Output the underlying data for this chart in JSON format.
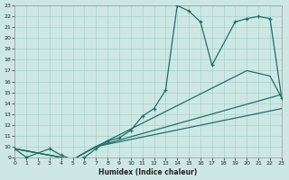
{
  "xlabel": "Humidex (Indice chaleur)",
  "background_color": "#cde8e4",
  "grid_color": "#a8d0ca",
  "line_color": "#1e7068",
  "xmin": 0,
  "xmax": 23,
  "ymin": 9,
  "ymax": 23,
  "line1_x": [
    0,
    1,
    3,
    4,
    5,
    6,
    7,
    8,
    9,
    10,
    11,
    12,
    13,
    14,
    15,
    16,
    17,
    19,
    20,
    21,
    22,
    23
  ],
  "line1_y": [
    9.8,
    9.0,
    9.8,
    9.2,
    8.8,
    9.0,
    9.8,
    10.5,
    10.8,
    11.5,
    12.8,
    13.5,
    15.2,
    23.0,
    22.5,
    21.5,
    17.5,
    21.5,
    21.8,
    22.0,
    21.8,
    14.5
  ],
  "line2_x": [
    0,
    5,
    7,
    20,
    22,
    23
  ],
  "line2_y": [
    9.8,
    8.8,
    10.0,
    17.0,
    16.5,
    14.5
  ],
  "line3_x": [
    0,
    5,
    7,
    23
  ],
  "line3_y": [
    9.8,
    8.8,
    10.0,
    13.5
  ],
  "line4_x": [
    0,
    5,
    7,
    23
  ],
  "line4_y": [
    9.8,
    8.8,
    10.0,
    14.8
  ]
}
